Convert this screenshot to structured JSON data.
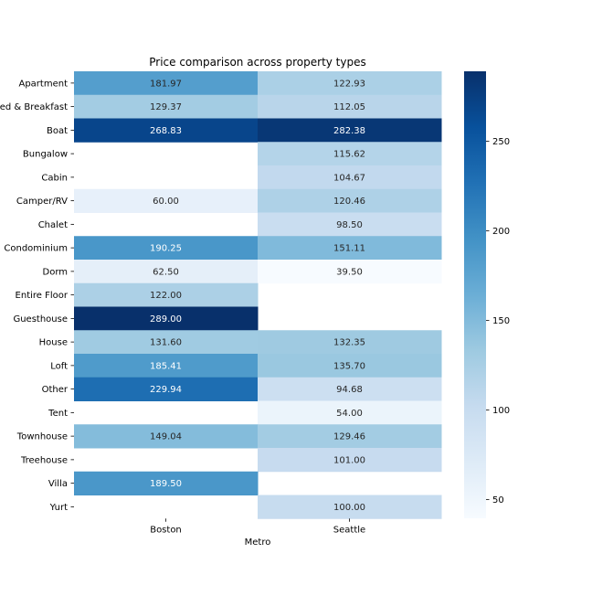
{
  "chart_data": {
    "type": "heatmap",
    "title": "Price comparison across property types",
    "xlabel": "Metro",
    "ylabel": "",
    "columns": [
      "Boston",
      "Seattle"
    ],
    "rows": [
      "Apartment",
      "Bed & Breakfast",
      "Boat",
      "Bungalow",
      "Cabin",
      "Camper/RV",
      "Chalet",
      "Condominium",
      "Dorm",
      "Entire Floor",
      "Guesthouse",
      "House",
      "Loft",
      "Other",
      "Tent",
      "Townhouse",
      "Treehouse",
      "Villa",
      "Yurt"
    ],
    "values": [
      [
        181.97,
        122.93
      ],
      [
        129.37,
        112.05
      ],
      [
        268.83,
        282.38
      ],
      [
        null,
        115.62
      ],
      [
        null,
        104.67
      ],
      [
        60.0,
        120.46
      ],
      [
        null,
        98.5
      ],
      [
        190.25,
        151.11
      ],
      [
        62.5,
        39.5
      ],
      [
        122.0,
        null
      ],
      [
        289.0,
        null
      ],
      [
        131.6,
        132.35
      ],
      [
        185.41,
        135.7
      ],
      [
        229.94,
        94.68
      ],
      [
        null,
        54.0
      ],
      [
        149.04,
        129.46
      ],
      [
        null,
        101.0
      ],
      [
        189.5,
        null
      ],
      [
        null,
        100.0
      ]
    ],
    "colormap": "Blues",
    "color_min": 39.5,
    "color_max": 289.0,
    "colorbar_ticks": [
      50,
      100,
      150,
      200,
      250
    ],
    "value_format": "2 decimals"
  }
}
